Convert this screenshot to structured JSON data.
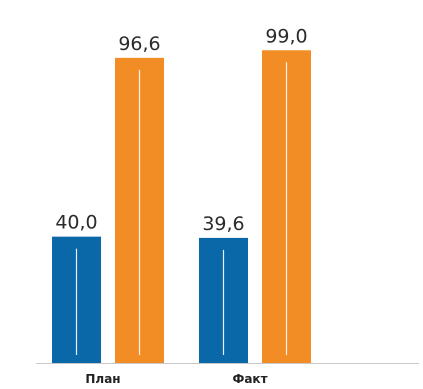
{
  "chart_data": {
    "type": "bar",
    "categories": [
      "План",
      "Факт"
    ],
    "series": [
      {
        "values": [
          40.0,
          39.6
        ]
      },
      {
        "values": [
          96.6,
          99.0
        ]
      }
    ],
    "data_labels": [
      [
        "40,0",
        "39,6"
      ],
      [
        "96,6",
        "99,0"
      ]
    ],
    "colors": [
      "#0a67a8",
      "#f28c25"
    ],
    "ylim": [
      0,
      100
    ],
    "grid": false
  }
}
